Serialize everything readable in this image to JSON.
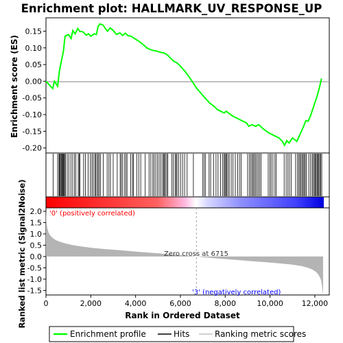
{
  "chart_data": {
    "type": "line",
    "title": "Enrichment plot: HALLMARK_UV_RESPONSE_UP",
    "xlabel": "Rank in Ordered Dataset",
    "ylabel_top": "Enrichment score (ES)",
    "ylabel_bottom": "Ranked list metric (Signal2Noise)",
    "xlim": [
      0,
      12400
    ],
    "x_ticks": [
      0,
      2000,
      4000,
      6000,
      8000,
      10000,
      12000
    ],
    "x_tick_labels": [
      "0",
      "2,000",
      "4,000",
      "6,000",
      "8,000",
      "10,000",
      "12,000"
    ],
    "es_ylim": [
      -0.215,
      0.19
    ],
    "es_ticks": [
      0.15,
      0.1,
      0.05,
      0.0,
      -0.05,
      -0.1,
      -0.15,
      -0.2
    ],
    "es_tick_labels": [
      "0.15",
      "0.10",
      "0.05",
      "0.00",
      "-0.05",
      "-0.10",
      "-0.15",
      "-0.20"
    ],
    "metric_ylim": [
      -1.7,
      2.15
    ],
    "metric_ticks": [
      2.0,
      1.5,
      1.0,
      0.5,
      0.0,
      -0.5,
      -1.0,
      -1.5
    ],
    "metric_tick_labels": [
      "2.0",
      "1.5",
      "1.0",
      "0.5",
      "0.0",
      "-0.5",
      "-1.0",
      "-1.5"
    ],
    "enrichment_profile": {
      "x": [
        0,
        300,
        380,
        520,
        600,
        700,
        780,
        850,
        1000,
        1120,
        1200,
        1300,
        1420,
        1500,
        1650,
        1800,
        1900,
        2000,
        2150,
        2250,
        2330,
        2420,
        2550,
        2650,
        2750,
        2870,
        3000,
        3150,
        3300,
        3420,
        3550,
        3650,
        3800,
        3950,
        4100,
        4300,
        4500,
        4650,
        4800,
        4950,
        5100,
        5250,
        5400,
        5550,
        5700,
        5850,
        6000,
        6200,
        6400,
        6600,
        6715,
        6900,
        7100,
        7300,
        7500,
        7650,
        7800,
        7950,
        8050,
        8200,
        8350,
        8500,
        8650,
        8800,
        8950,
        9050,
        9200,
        9350,
        9500,
        9650,
        9800,
        9950,
        10100,
        10250,
        10400,
        10550,
        10650,
        10750,
        10850,
        11000,
        11100,
        11200,
        11300,
        11400,
        11500,
        11600,
        11700,
        11800,
        11900,
        12000,
        12100,
        12200,
        12300
      ],
      "y": [
        0.0,
        -0.022,
        0.0,
        -0.015,
        0.03,
        0.065,
        0.09,
        0.135,
        0.14,
        0.128,
        0.152,
        0.142,
        0.158,
        0.15,
        0.148,
        0.138,
        0.142,
        0.135,
        0.142,
        0.14,
        0.165,
        0.172,
        0.168,
        0.158,
        0.15,
        0.16,
        0.152,
        0.14,
        0.145,
        0.137,
        0.144,
        0.137,
        0.135,
        0.128,
        0.122,
        0.112,
        0.1,
        0.095,
        0.092,
        0.09,
        0.087,
        0.085,
        0.08,
        0.07,
        0.06,
        0.055,
        0.045,
        0.03,
        0.012,
        -0.008,
        -0.02,
        -0.035,
        -0.05,
        -0.065,
        -0.075,
        -0.085,
        -0.09,
        -0.095,
        -0.09,
        -0.098,
        -0.105,
        -0.11,
        -0.115,
        -0.12,
        -0.125,
        -0.135,
        -0.13,
        -0.135,
        -0.13,
        -0.14,
        -0.148,
        -0.155,
        -0.16,
        -0.165,
        -0.17,
        -0.18,
        -0.192,
        -0.178,
        -0.185,
        -0.17,
        -0.175,
        -0.18,
        -0.165,
        -0.15,
        -0.135,
        -0.118,
        -0.12,
        -0.105,
        -0.085,
        -0.065,
        -0.045,
        -0.02,
        0.008
      ]
    },
    "hits": [
      320,
      520,
      580,
      610,
      640,
      680,
      710,
      740,
      770,
      800,
      830,
      870,
      950,
      1020,
      1110,
      1190,
      1270,
      1330,
      1440,
      1480,
      1520,
      1680,
      1760,
      1880,
      1980,
      2050,
      2110,
      2180,
      2220,
      2280,
      2330,
      2380,
      2440,
      2560,
      2730,
      2810,
      2880,
      3000,
      3180,
      3310,
      3360,
      3420,
      3500,
      3570,
      3620,
      3780,
      3860,
      3900,
      4050,
      4140,
      4230,
      4430,
      4600,
      4680,
      4770,
      4830,
      4900,
      4980,
      5050,
      5120,
      5200,
      5250,
      5290,
      5330,
      5390,
      5440,
      5610,
      5680,
      5760,
      5810,
      5850,
      5920,
      6010,
      6100,
      6190,
      6300,
      6580,
      6990,
      7060,
      7120,
      7280,
      7350,
      7480,
      7590,
      7680,
      7790,
      7880,
      7950,
      7990,
      8030,
      8060,
      8120,
      8180,
      8270,
      8350,
      8450,
      8560,
      8640,
      8710,
      9000,
      9080,
      9140,
      9200,
      9250,
      9300,
      9350,
      9410,
      9480,
      9540,
      9600,
      9920,
      9990,
      10050,
      10130,
      10220,
      10280,
      10630,
      10720,
      10800,
      10870,
      10950,
      11140,
      11220,
      11280,
      11330,
      11380,
      11430,
      11480,
      11520,
      11570,
      11620,
      11730,
      11810,
      11880,
      11930,
      11980,
      12020,
      12060,
      12100,
      12140,
      12180,
      12220,
      12260,
      12310
    ],
    "ranked_metric": {
      "x": [
        0,
        20,
        60,
        120,
        200,
        300,
        450,
        650,
        900,
        1200,
        1600,
        2000,
        2500,
        3000,
        3500,
        4000,
        4500,
        5000,
        5500,
        6000,
        6400,
        6715,
        7000,
        7500,
        8000,
        8500,
        9000,
        9500,
        10000,
        10500,
        11000,
        11400,
        11700,
        11900,
        12050,
        12150,
        12230,
        12280,
        12320,
        12350,
        12370
      ],
      "y": [
        2.12,
        1.55,
        1.25,
        1.05,
        0.92,
        0.82,
        0.72,
        0.64,
        0.57,
        0.5,
        0.44,
        0.39,
        0.34,
        0.3,
        0.26,
        0.22,
        0.18,
        0.14,
        0.1,
        0.06,
        0.03,
        0.0,
        -0.03,
        -0.07,
        -0.11,
        -0.15,
        -0.19,
        -0.23,
        -0.27,
        -0.31,
        -0.36,
        -0.42,
        -0.5,
        -0.58,
        -0.68,
        -0.78,
        -0.92,
        -1.05,
        -1.3,
        -1.55,
        -1.65
      ]
    },
    "annotations": {
      "positive_label": "'0' (positively correlated)",
      "negative_label": "'3' (negatively correlated)",
      "zero_cross_label": "Zero cross at 6715",
      "zero_cross_x": 6715
    },
    "legend": {
      "placement": "bottom",
      "items": [
        {
          "label": "Enrichment profile",
          "color": "#00ff00"
        },
        {
          "label": "Hits",
          "color": "#000000"
        },
        {
          "label": "Ranking metric scores",
          "color": "#c0c0c0"
        }
      ]
    },
    "colors": {
      "profile": "#00ff00",
      "hits": "#000000",
      "metric_fill": "#b4b4b4",
      "positive_text": "#ff0000",
      "negative_text": "#0000ff",
      "zero_line": "#808080",
      "heatmap_positive": "#ff0000",
      "heatmap_neutral": "#ffffff",
      "heatmap_negative": "#0000ff"
    }
  }
}
